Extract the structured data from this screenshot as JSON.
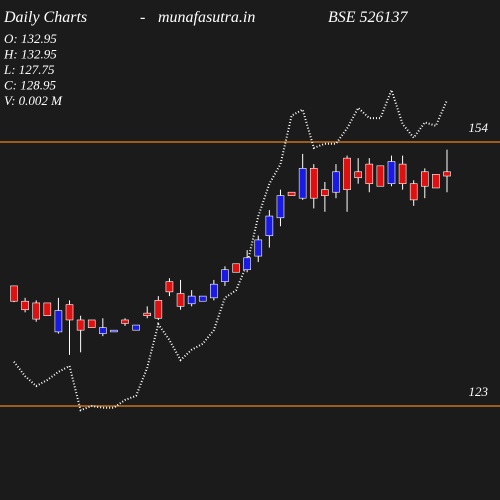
{
  "chart_data": {
    "type": "candlestick",
    "title": "Daily Charts",
    "separator": "-",
    "site": "munafasutra.in",
    "symbol": "BSE 526137",
    "info": [
      "O: 132.95",
      "H: 132.95",
      "L: 127.75",
      "C: 128.95",
      "V: 0.002  M"
    ],
    "ylim": [
      111.96,
      170.67
    ],
    "levels": [
      154,
      123
    ],
    "level_color": "#e8821e",
    "up_color": "#1a1ae6",
    "down_color": "#e01010",
    "open": [
      137.1,
      135.3,
      135.1,
      135.1,
      131.7,
      134.9,
      133.1,
      133.1,
      131.5,
      131.7,
      133.1,
      131.9,
      133.9,
      135.4,
      137.6,
      136.2,
      135.0,
      135.3,
      135.7,
      137.6,
      139.7,
      139.0,
      140.6,
      143.0,
      145.1,
      148.1,
      147.4,
      150.9,
      148.4,
      148.1,
      152.1,
      150.5,
      151.4,
      151.2,
      149.1,
      151.4,
      149.1,
      150.5,
      150.2,
      150.5
    ],
    "high": [
      137.1,
      135.7,
      135.4,
      135.1,
      135.7,
      135.4,
      133.6,
      133.1,
      133.3,
      131.9,
      133.3,
      132.5,
      134.7,
      135.9,
      138.0,
      137.8,
      136.6,
      135.9,
      137.8,
      139.4,
      139.7,
      141.3,
      143.0,
      146.0,
      148.4,
      148.1,
      152.6,
      151.4,
      149.3,
      151.4,
      152.4,
      152.1,
      152.1,
      151.2,
      152.4,
      152.4,
      149.5,
      150.9,
      150.2,
      153.1
    ],
    "low": [
      135.2,
      134.0,
      132.9,
      133.6,
      131.5,
      129.0,
      129.3,
      132.2,
      131.2,
      131.7,
      132.4,
      131.9,
      133.3,
      133.1,
      135.9,
      134.3,
      134.7,
      135.3,
      135.4,
      137.1,
      138.7,
      138.7,
      139.9,
      141.6,
      144.1,
      147.7,
      147.2,
      146.2,
      145.8,
      147.4,
      145.8,
      149.1,
      148.1,
      148.8,
      148.8,
      148.4,
      146.5,
      147.4,
      148.6,
      148.1
    ],
    "close": [
      135.3,
      134.3,
      133.2,
      133.6,
      134.2,
      133.1,
      131.9,
      132.2,
      132.2,
      131.9,
      132.7,
      132.5,
      133.6,
      133.3,
      136.4,
      134.7,
      135.9,
      135.9,
      137.3,
      139.0,
      138.7,
      140.4,
      142.5,
      145.3,
      147.7,
      147.7,
      150.9,
      147.4,
      147.7,
      150.5,
      148.4,
      149.8,
      149.1,
      148.8,
      151.7,
      149.1,
      147.2,
      148.8,
      148.6,
      150.0
    ],
    "line": {
      "color": "#ffffff",
      "values": [
        128.2,
        126.5,
        125.35,
        126.05,
        127.0,
        127.7,
        122.5,
        123.0,
        122.8,
        122.8,
        123.7,
        124.2,
        127.5,
        132.6,
        130.75,
        128.4,
        129.6,
        130.3,
        131.9,
        135.7,
        136.6,
        139.7,
        145.3,
        149.1,
        151.4,
        157.1,
        157.8,
        153.3,
        153.8,
        153.8,
        155.6,
        158.0,
        156.8,
        156.8,
        160.1,
        156.1,
        154.5,
        156.3,
        155.9,
        158.9
      ]
    }
  }
}
